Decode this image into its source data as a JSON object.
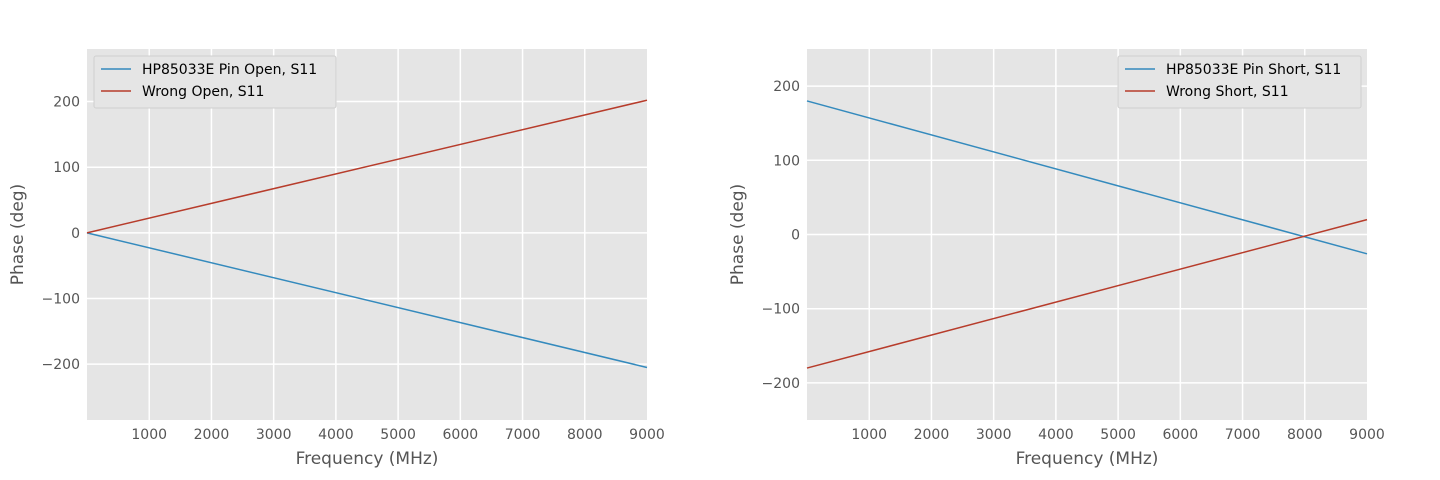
{
  "chart_data": [
    {
      "type": "line",
      "title": "",
      "xlabel": "Frequency (MHz)",
      "ylabel": "Phase (deg)",
      "xlim": [
        0,
        9000
      ],
      "ylim": [
        -285,
        280
      ],
      "xticks": [
        1000,
        2000,
        3000,
        4000,
        5000,
        6000,
        7000,
        8000,
        9000
      ],
      "xtick_labels": [
        "1000",
        "2000",
        "3000",
        "4000",
        "5000",
        "6000",
        "7000",
        "8000",
        "9000"
      ],
      "yticks": [
        200,
        100,
        0,
        -100,
        -200
      ],
      "ytick_labels": [
        "200",
        "100",
        "0",
        "−100",
        "−200"
      ],
      "grid": true,
      "legend_position": "top-left",
      "series": [
        {
          "name": "HP85033E Pin Open, S11",
          "color": "#348ABD",
          "x": [
            0,
            9000
          ],
          "y": [
            0,
            -205
          ]
        },
        {
          "name": "Wrong Open, S11",
          "color": "#B73C2B",
          "x": [
            0,
            9000
          ],
          "y": [
            0,
            202
          ]
        }
      ]
    },
    {
      "type": "line",
      "title": "",
      "xlabel": "Frequency (MHz)",
      "ylabel": "Phase (deg)",
      "xlim": [
        0,
        9000
      ],
      "ylim": [
        -250,
        250
      ],
      "xticks": [
        1000,
        2000,
        3000,
        4000,
        5000,
        6000,
        7000,
        8000,
        9000
      ],
      "xtick_labels": [
        "1000",
        "2000",
        "3000",
        "4000",
        "5000",
        "6000",
        "7000",
        "8000",
        "9000"
      ],
      "yticks": [
        200,
        100,
        0,
        -100,
        -200
      ],
      "ytick_labels": [
        "200",
        "100",
        "0",
        "−100",
        "−200"
      ],
      "grid": true,
      "legend_position": "top-right",
      "series": [
        {
          "name": "HP85033E Pin Short, S11",
          "color": "#348ABD",
          "x": [
            0,
            9000
          ],
          "y": [
            180,
            -26
          ]
        },
        {
          "name": "Wrong Short, S11",
          "color": "#B73C2B",
          "x": [
            0,
            9000
          ],
          "y": [
            -180,
            20
          ]
        }
      ]
    }
  ]
}
